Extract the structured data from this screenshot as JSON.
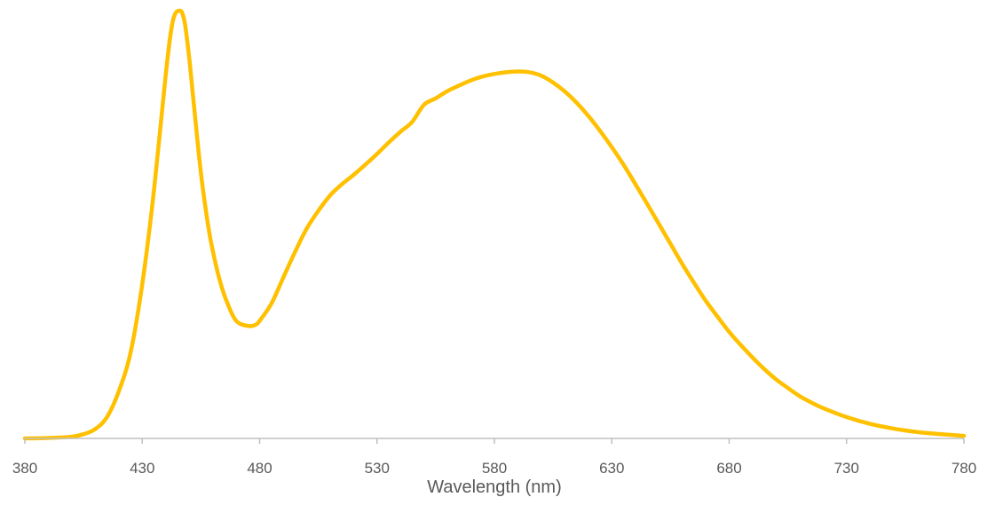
{
  "chart_data": {
    "type": "line",
    "title": "",
    "xlabel": "Wavelength (nm)",
    "ylabel": "",
    "xlim": [
      380,
      780
    ],
    "ylim": [
      0,
      1
    ],
    "grid": false,
    "line_color": "#FFC000",
    "axis_color": "#BFBFBF",
    "x_ticks": [
      380,
      430,
      480,
      530,
      580,
      630,
      680,
      730,
      780
    ],
    "series": [
      {
        "x": [
          380,
          390,
          400,
          405,
          410,
          415,
          420,
          425,
          430,
          435,
          440,
          443,
          446,
          448,
          450,
          452,
          455,
          458,
          460,
          463,
          466,
          470,
          475,
          478,
          480,
          485,
          490,
          495,
          500,
          505,
          510,
          515,
          520,
          525,
          530,
          535,
          540,
          545,
          550,
          555,
          560,
          565,
          570,
          575,
          580,
          585,
          590,
          595,
          600,
          605,
          610,
          615,
          620,
          625,
          630,
          635,
          640,
          645,
          650,
          655,
          660,
          665,
          670,
          675,
          680,
          685,
          690,
          695,
          700,
          705,
          710,
          715,
          720,
          730,
          740,
          750,
          760,
          770,
          780
        ],
        "y": [
          0.0,
          0.001,
          0.004,
          0.01,
          0.022,
          0.05,
          0.11,
          0.2,
          0.36,
          0.58,
          0.85,
          0.975,
          1.0,
          0.975,
          0.89,
          0.78,
          0.62,
          0.5,
          0.44,
          0.37,
          0.32,
          0.275,
          0.263,
          0.265,
          0.275,
          0.315,
          0.375,
          0.435,
          0.49,
          0.532,
          0.568,
          0.594,
          0.616,
          0.64,
          0.665,
          0.692,
          0.717,
          0.74,
          0.78,
          0.795,
          0.812,
          0.825,
          0.837,
          0.846,
          0.852,
          0.856,
          0.858,
          0.856,
          0.848,
          0.832,
          0.811,
          0.785,
          0.754,
          0.719,
          0.681,
          0.64,
          0.595,
          0.549,
          0.502,
          0.455,
          0.408,
          0.364,
          0.322,
          0.285,
          0.249,
          0.218,
          0.189,
          0.162,
          0.138,
          0.118,
          0.099,
          0.084,
          0.071,
          0.05,
          0.034,
          0.023,
          0.015,
          0.01,
          0.006
        ]
      }
    ]
  }
}
